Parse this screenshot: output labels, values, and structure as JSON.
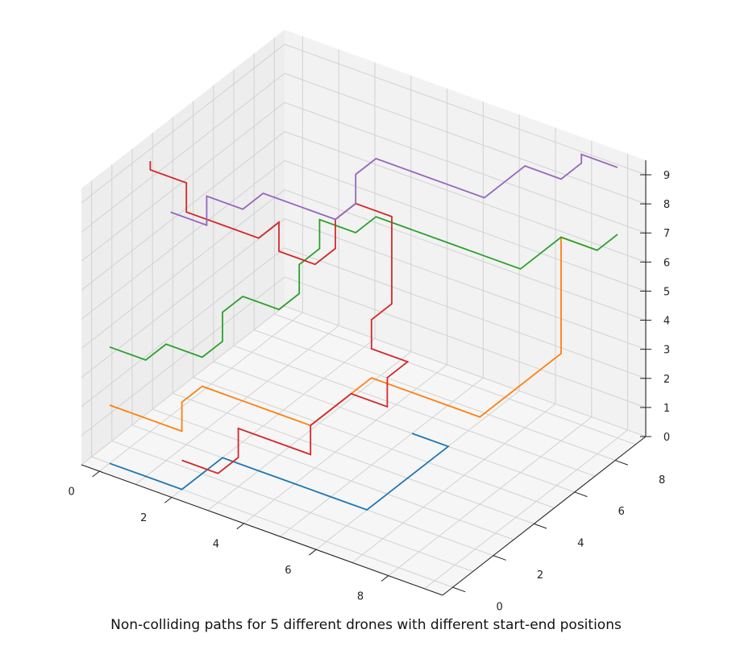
{
  "chart_data": {
    "type": "line",
    "subtype": "3d-line",
    "title": "Non-colliding paths for 5 different drones with different start-end positions",
    "xlabel": "",
    "ylabel": "",
    "zlabel": "",
    "xlim": [
      -0.5,
      9.5
    ],
    "ylim": [
      -0.5,
      9.5
    ],
    "zlim": [
      0,
      9
    ],
    "x_ticks": [
      "0",
      "2",
      "4",
      "6",
      "8"
    ],
    "y_ticks": [
      "0",
      "2",
      "4",
      "6",
      "8"
    ],
    "z_ticks": [
      "0",
      "1",
      "2",
      "3",
      "4",
      "5",
      "6",
      "7",
      "8",
      "9"
    ],
    "grid": true,
    "legend": "none",
    "series": [
      {
        "color": "#1f77b4",
        "points": [
          [
            0,
            0,
            0
          ],
          [
            1,
            0,
            0
          ],
          [
            2,
            0,
            0
          ],
          [
            2,
            1,
            0
          ],
          [
            2,
            2,
            0
          ],
          [
            3,
            2,
            0
          ],
          [
            4,
            2,
            0
          ],
          [
            5,
            2,
            0
          ],
          [
            6,
            2,
            0
          ],
          [
            6,
            3,
            0
          ],
          [
            6,
            4,
            0
          ],
          [
            6,
            5,
            0
          ],
          [
            6,
            6,
            0
          ],
          [
            5,
            6,
            0
          ]
        ]
      },
      {
        "color": "#ff7f0e",
        "points": [
          [
            0,
            0,
            2
          ],
          [
            1,
            0,
            2
          ],
          [
            2,
            0,
            2
          ],
          [
            2,
            0,
            3
          ],
          [
            2,
            1,
            3
          ],
          [
            3,
            1,
            3
          ],
          [
            4,
            1,
            3
          ],
          [
            5,
            1,
            3
          ],
          [
            5,
            2,
            3
          ],
          [
            5,
            3,
            3
          ],
          [
            5,
            4,
            3
          ],
          [
            6,
            4,
            3
          ],
          [
            7,
            4,
            3
          ],
          [
            8,
            4,
            3
          ],
          [
            8,
            5,
            3
          ],
          [
            8,
            6,
            3
          ],
          [
            8,
            7,
            3
          ],
          [
            8,
            8,
            3
          ],
          [
            8,
            8,
            4
          ],
          [
            8,
            8,
            5
          ],
          [
            8,
            8,
            6
          ],
          [
            8,
            8,
            7
          ],
          [
            9,
            8,
            7
          ]
        ]
      },
      {
        "color": "#2ca02c",
        "points": [
          [
            0,
            0,
            4
          ],
          [
            1,
            0,
            4
          ],
          [
            1,
            1,
            4
          ],
          [
            2,
            1,
            4
          ],
          [
            2,
            2,
            4
          ],
          [
            2,
            2,
            5
          ],
          [
            2,
            3,
            5
          ],
          [
            3,
            3,
            5
          ],
          [
            3,
            4,
            5
          ],
          [
            3,
            4,
            6
          ],
          [
            3,
            5,
            6
          ],
          [
            3,
            5,
            7
          ],
          [
            4,
            5,
            7
          ],
          [
            4,
            6,
            7
          ],
          [
            5,
            6,
            7
          ],
          [
            6,
            6,
            7
          ],
          [
            7,
            6,
            7
          ],
          [
            8,
            6,
            7
          ],
          [
            8,
            7,
            7
          ],
          [
            8,
            8,
            7
          ],
          [
            9,
            8,
            7
          ],
          [
            9,
            9,
            7
          ]
        ]
      },
      {
        "color": "#d62728",
        "points": [
          [
            2,
            0,
            1
          ],
          [
            3,
            0,
            1
          ],
          [
            3,
            1,
            1
          ],
          [
            3,
            1,
            2
          ],
          [
            4,
            1,
            2
          ],
          [
            5,
            1,
            2
          ],
          [
            5,
            1,
            3
          ],
          [
            5,
            2,
            3
          ],
          [
            5,
            3,
            3
          ],
          [
            6,
            3,
            3
          ],
          [
            6,
            3,
            4
          ],
          [
            6,
            4,
            4
          ],
          [
            5,
            4,
            4
          ],
          [
            5,
            4,
            5
          ],
          [
            5,
            5,
            5
          ],
          [
            5,
            5,
            6
          ],
          [
            5,
            5,
            7
          ],
          [
            5,
            5,
            8
          ],
          [
            4,
            5,
            8
          ],
          [
            4,
            4,
            8
          ],
          [
            4,
            4,
            7
          ],
          [
            4,
            3,
            7
          ],
          [
            3,
            3,
            7
          ],
          [
            3,
            3,
            8
          ],
          [
            3,
            2,
            8
          ],
          [
            2,
            2,
            8
          ],
          [
            1,
            2,
            8
          ],
          [
            1,
            2,
            9
          ],
          [
            0,
            2,
            9
          ],
          [
            0,
            2,
            10
          ]
        ]
      },
      {
        "color": "#9467bd",
        "points": [
          [
            0,
            3,
            7
          ],
          [
            1,
            3,
            7
          ],
          [
            1,
            3,
            8
          ],
          [
            2,
            3,
            8
          ],
          [
            2,
            4,
            8
          ],
          [
            3,
            4,
            8
          ],
          [
            4,
            4,
            8
          ],
          [
            4,
            5,
            8
          ],
          [
            4,
            5,
            9
          ],
          [
            4,
            6,
            9
          ],
          [
            5,
            6,
            9
          ],
          [
            6,
            6,
            9
          ],
          [
            7,
            6,
            9
          ],
          [
            7,
            7,
            9
          ],
          [
            7,
            8,
            9
          ],
          [
            8,
            8,
            9
          ],
          [
            8,
            9,
            9
          ],
          [
            8,
            9,
            10
          ],
          [
            9,
            9,
            10
          ]
        ]
      }
    ]
  }
}
